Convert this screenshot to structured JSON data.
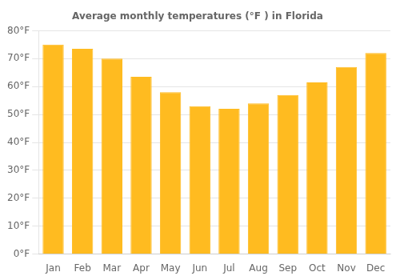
{
  "chart_data": {
    "type": "bar",
    "title": "Average monthly temperatures (°F ) in Florida",
    "categories": [
      "Jan",
      "Feb",
      "Mar",
      "Apr",
      "May",
      "Jun",
      "Jul",
      "Aug",
      "Sep",
      "Oct",
      "Nov",
      "Dec"
    ],
    "values": [
      75.0,
      73.5,
      70.0,
      63.5,
      58.0,
      53.0,
      52.0,
      54.0,
      57.0,
      61.5,
      67.0,
      72.0
    ],
    "color": "#FFBB20",
    "ylim": [
      0,
      80
    ],
    "yticks": [
      {
        "value": 0,
        "label": "0°F"
      },
      {
        "value": 10,
        "label": "10°F"
      },
      {
        "value": 20,
        "label": "20°F"
      },
      {
        "value": 30,
        "label": "30°F"
      },
      {
        "value": 40,
        "label": "40°F"
      },
      {
        "value": 50,
        "label": "50°F"
      },
      {
        "value": 60,
        "label": "60°F"
      },
      {
        "value": 70,
        "label": "70°F"
      },
      {
        "value": 80,
        "label": "80°F"
      }
    ],
    "grid": true
  }
}
